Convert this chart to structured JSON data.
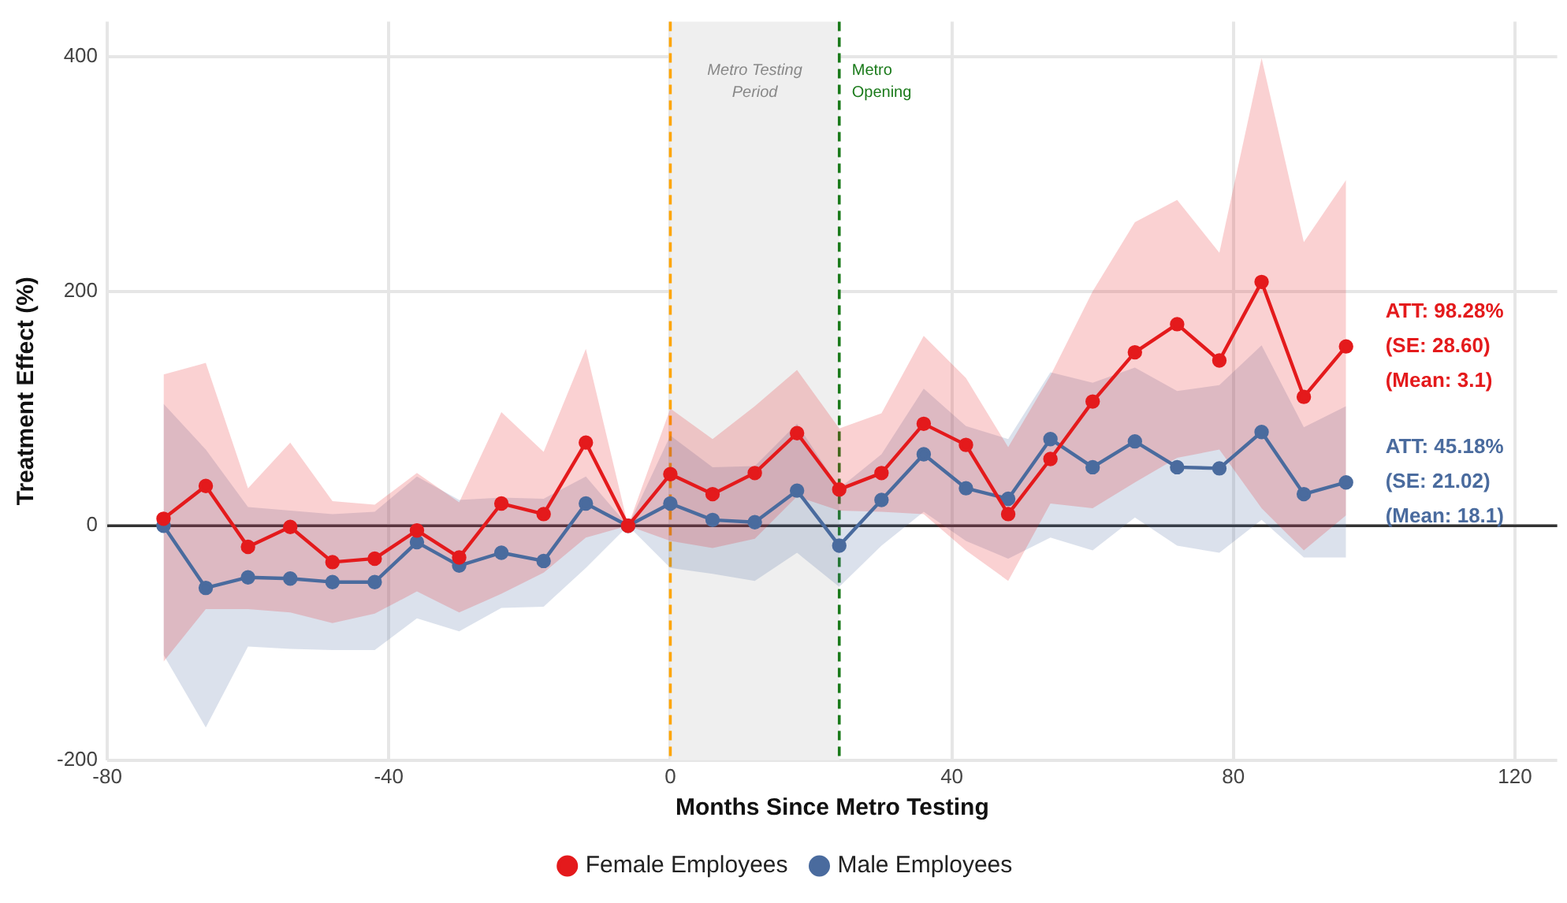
{
  "chart_data": {
    "type": "line",
    "xlabel": "Months Since Metro Testing",
    "ylabel": "Treatment Effect (%)",
    "x": [
      -72,
      -66,
      -60,
      -54,
      -48,
      -42,
      -36,
      -30,
      -24,
      -18,
      -12,
      -6,
      0,
      6,
      12,
      18,
      24,
      30,
      36,
      42,
      48,
      54,
      60,
      66,
      72,
      78,
      84,
      90,
      96
    ],
    "series": [
      {
        "name": "Female Employees",
        "color": "#e41a1c",
        "values": [
          6,
          34,
          -18,
          -1,
          -31,
          -28,
          -4,
          -27,
          19,
          10,
          71,
          0,
          44,
          27,
          45,
          79,
          31,
          45,
          87,
          69,
          10,
          57,
          106,
          148,
          172,
          141,
          208,
          110,
          153
        ],
        "lower": [
          -116,
          -71,
          -71,
          -74,
          -83,
          -75,
          -56,
          -74,
          -58,
          -40,
          -10,
          0,
          -13,
          -19,
          -11,
          25,
          13,
          12,
          10,
          -21,
          -47,
          19,
          15,
          37,
          58,
          65,
          15,
          -21,
          9
        ],
        "upper": [
          129,
          139,
          32,
          71,
          21,
          18,
          45,
          20,
          97,
          63,
          151,
          0,
          100,
          74,
          102,
          133,
          83,
          96,
          162,
          126,
          67,
          128,
          200,
          259,
          278,
          233,
          399,
          242,
          295
        ]
      },
      {
        "name": "Male Employees",
        "color": "#4a6b9e",
        "values": [
          0,
          -53,
          -44,
          -45,
          -48,
          -48,
          -14,
          -34,
          -23,
          -30,
          19,
          0,
          19,
          5,
          3,
          30,
          -17,
          22,
          61,
          32,
          23,
          74,
          50,
          72,
          50,
          49,
          80,
          27,
          37
        ],
        "lower": [
          -110,
          -172,
          -103,
          -105,
          -106,
          -106,
          -79,
          -90,
          -70,
          -69,
          -36,
          0,
          -36,
          -41,
          -47,
          -23,
          -52,
          -17,
          12,
          -13,
          -28,
          -10,
          -21,
          7,
          -17,
          -23,
          5,
          -27,
          -27
        ],
        "upper": [
          104,
          65,
          16,
          13,
          10,
          12,
          42,
          22,
          24,
          23,
          42,
          0,
          77,
          50,
          51,
          87,
          32,
          61,
          117,
          85,
          74,
          131,
          122,
          135,
          115,
          120,
          154,
          84,
          102
        ]
      }
    ],
    "xlim": [
      -80,
      126
    ],
    "xticks": [
      -80,
      -40,
      0,
      40,
      80,
      120
    ],
    "ylim": [
      -200,
      430
    ],
    "yticks": [
      -200,
      0,
      200,
      400
    ],
    "grid": true,
    "legend": "bottom",
    "marker": "circle",
    "line_style": "solid",
    "bands": [
      {
        "axis": "x",
        "from": 0,
        "to": 24,
        "label": "Metro Testing Period",
        "color": "#efefef"
      }
    ],
    "ref_lines": [
      {
        "axis": "x",
        "value": 0,
        "color": "#ffa500",
        "line_style": "dashed"
      },
      {
        "axis": "x",
        "value": 24,
        "label": "Metro Opening",
        "color": "#1a7a1a",
        "line_style": "dashed"
      },
      {
        "axis": "y",
        "value": 0,
        "color": "#333333",
        "line_style": "solid"
      }
    ],
    "annotations": [
      "ATT: 98.28%\n(SE: 28.60)\n(Mean: 3.1)",
      "ATT: 45.18%\n(SE: 21.02)\n(Mean: 18.1)"
    ]
  }
}
